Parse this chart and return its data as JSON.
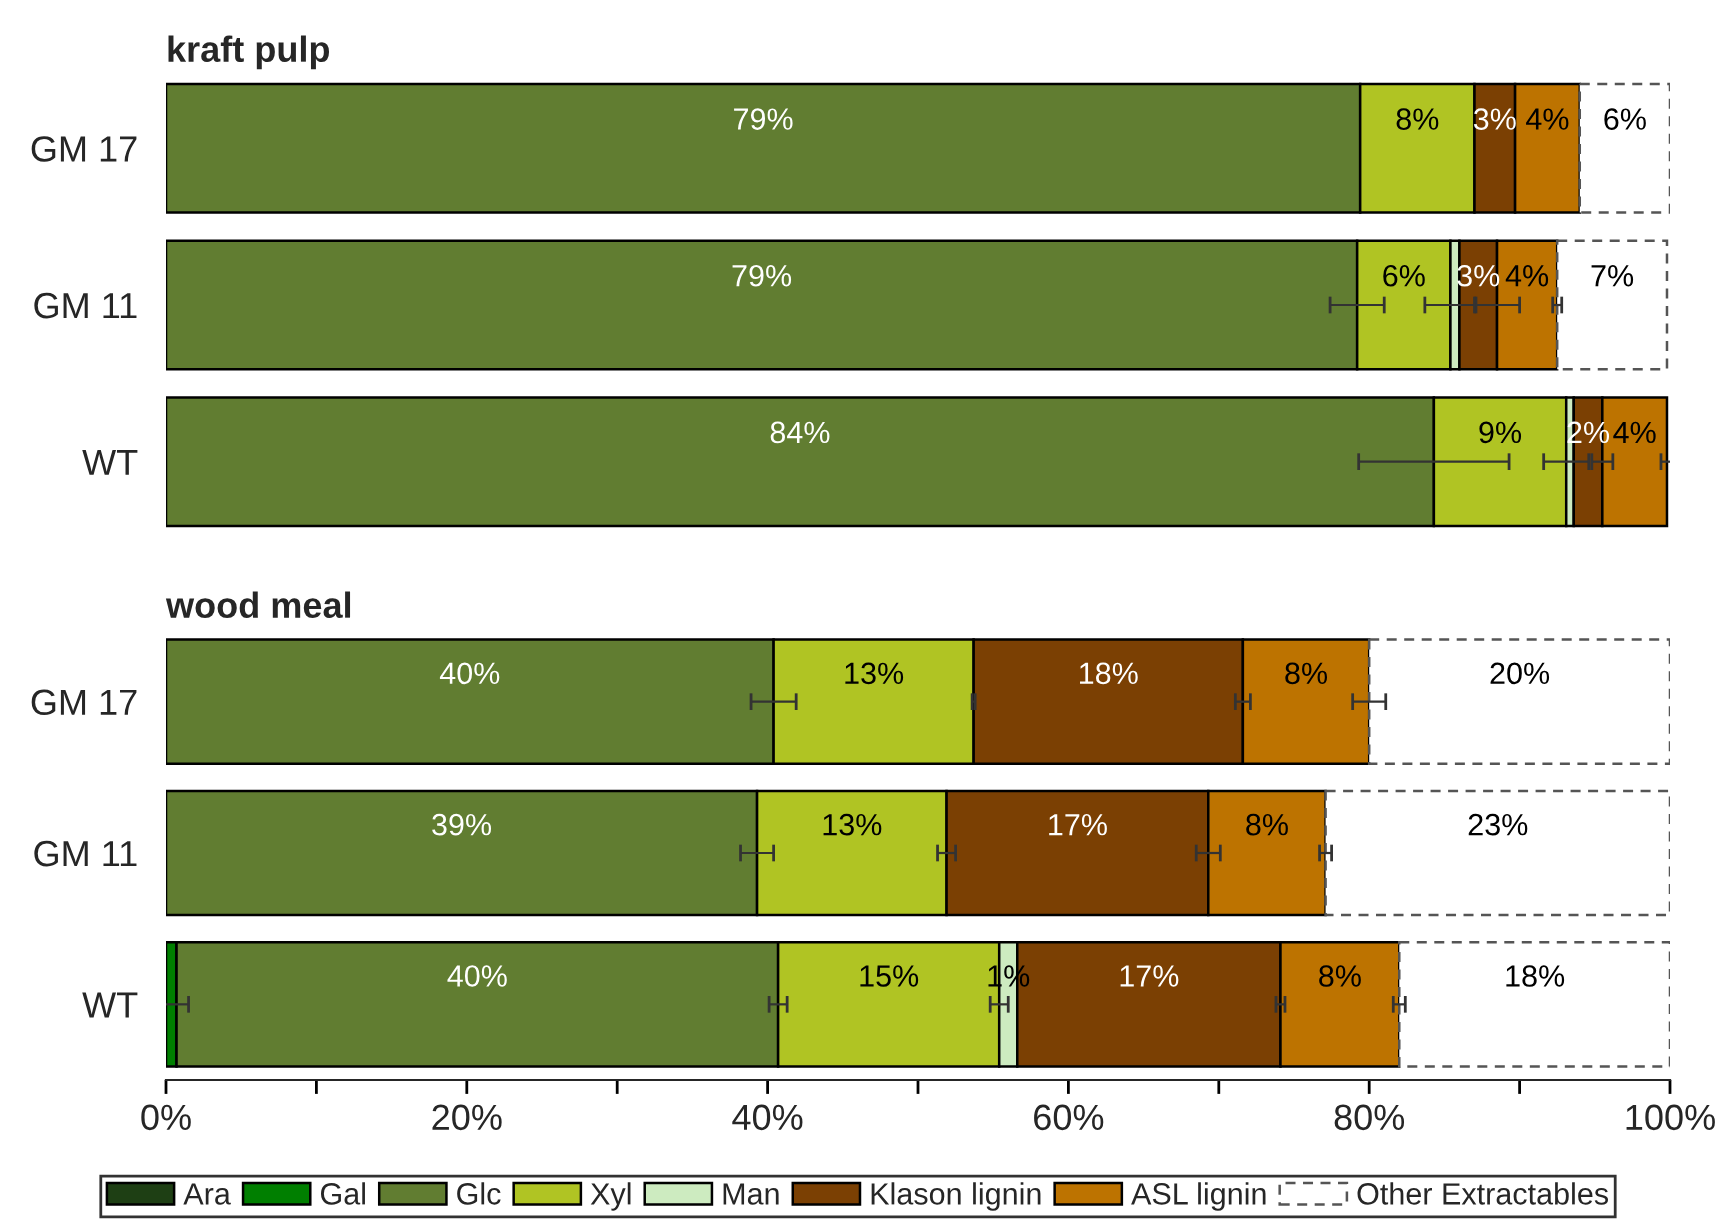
{
  "chart_data": [
    {
      "type": "bar",
      "title": "kraft pulp",
      "orientation": "horizontal",
      "stacked": true,
      "categories": [
        "GM 17",
        "GM 11",
        "WT"
      ],
      "xlim": [
        0,
        100
      ],
      "tick_labels": "y",
      "series": [
        {
          "color": "#1e3f14",
          "values": [
            0,
            null,
            null
          ],
          "value_labels": [
            null,
            null,
            null
          ]
        },
        {
          "color": "#007f00",
          "values": [
            0,
            0,
            0
          ],
          "value_labels": [
            null,
            null,
            null
          ]
        },
        {
          "color": "#617d31",
          "values": [
            79.4,
            79.2,
            84.3
          ],
          "value_labels": [
            "79%",
            "79%",
            "84%"
          ],
          "errors": [
            null,
            1.8,
            5.0
          ]
        },
        {
          "color": "#b0c423",
          "values": [
            7.6,
            6.2,
            8.8
          ],
          "value_labels": [
            "8%",
            "6%",
            "9%"
          ],
          "errors": [
            null,
            1.7,
            1.5
          ]
        },
        {
          "color": "#cdebc0",
          "values": [
            0,
            0.6,
            0.5
          ],
          "value_labels": [
            null,
            null,
            null
          ]
        },
        {
          "color": "#7b4003",
          "values": [
            2.7,
            2.5,
            1.9
          ],
          "value_labels": [
            "3%",
            "3%",
            "2%"
          ],
          "errors": [
            null,
            1.5,
            0.7
          ]
        },
        {
          "color": "#bd7300",
          "values": [
            4.3,
            4.0,
            4.3
          ],
          "value_labels": [
            "4%",
            "4%",
            "4%"
          ],
          "errors": [
            null,
            0.3,
            0.4
          ]
        },
        {
          "color": "#ffffff",
          "line_style": "dashed",
          "values": [
            6.0,
            7.3,
            0
          ],
          "value_labels": [
            "6%",
            "7%",
            null
          ]
        }
      ]
    },
    {
      "type": "bar",
      "title": "wood meal",
      "orientation": "horizontal",
      "stacked": true,
      "categories": [
        "GM 17",
        "GM 11",
        "WT"
      ],
      "xlim": [
        0,
        100
      ],
      "xticks": [
        {
          "value": 0,
          "label": "0%"
        },
        {
          "value": 10,
          "label": null
        },
        {
          "value": 20,
          "label": "20%"
        },
        {
          "value": 30,
          "label": null
        },
        {
          "value": 40,
          "label": "40%"
        },
        {
          "value": 50,
          "label": null
        },
        {
          "value": 60,
          "label": "60%"
        },
        {
          "value": 70,
          "label": null
        },
        {
          "value": 80,
          "label": "80%"
        },
        {
          "value": 90,
          "label": null
        },
        {
          "value": 100,
          "label": "100%"
        }
      ],
      "legend": "bottom",
      "series": [
        {
          "name": "Ara",
          "color": "#1e3f14",
          "values": [
            0,
            0,
            0
          ],
          "value_labels": [
            null,
            null,
            null
          ]
        },
        {
          "name": "Gal",
          "color": "#007f00",
          "values": [
            0,
            0,
            0.7
          ],
          "value_labels": [
            null,
            null,
            null
          ],
          "errors": [
            null,
            null,
            0.8
          ]
        },
        {
          "name": "Glc",
          "color": "#617d31",
          "values": [
            40.4,
            39.3,
            40.0
          ],
          "value_labels": [
            "40%",
            "39%",
            "40%"
          ],
          "errors": [
            1.5,
            1.1,
            0.6
          ]
        },
        {
          "name": "Xyl",
          "color": "#b0c423",
          "values": [
            13.3,
            12.6,
            14.7
          ],
          "value_labels": [
            "13%",
            "13%",
            "15%"
          ],
          "errors": [
            0.1,
            0.6,
            0.6
          ]
        },
        {
          "name": "Man",
          "color": "#cdebc0",
          "values": [
            0,
            0,
            1.2
          ],
          "value_labels": [
            null,
            null,
            "1%"
          ]
        },
        {
          "name": "Klason lignin",
          "color": "#7b4003",
          "values": [
            17.9,
            17.4,
            17.5
          ],
          "value_labels": [
            "18%",
            "17%",
            "17%"
          ],
          "errors": [
            0.5,
            0.8,
            0.3
          ]
        },
        {
          "name": "ASL lignin",
          "color": "#bd7300",
          "values": [
            8.4,
            7.8,
            7.9
          ],
          "value_labels": [
            "8%",
            "8%",
            "8%"
          ],
          "errors": [
            1.1,
            0.4,
            0.4
          ]
        },
        {
          "name": "Other Extractables",
          "color": "#ffffff",
          "line_style": "dashed",
          "values": [
            20.0,
            22.9,
            18.0
          ],
          "value_labels": [
            "20%",
            "23%",
            "18%"
          ]
        }
      ]
    }
  ]
}
